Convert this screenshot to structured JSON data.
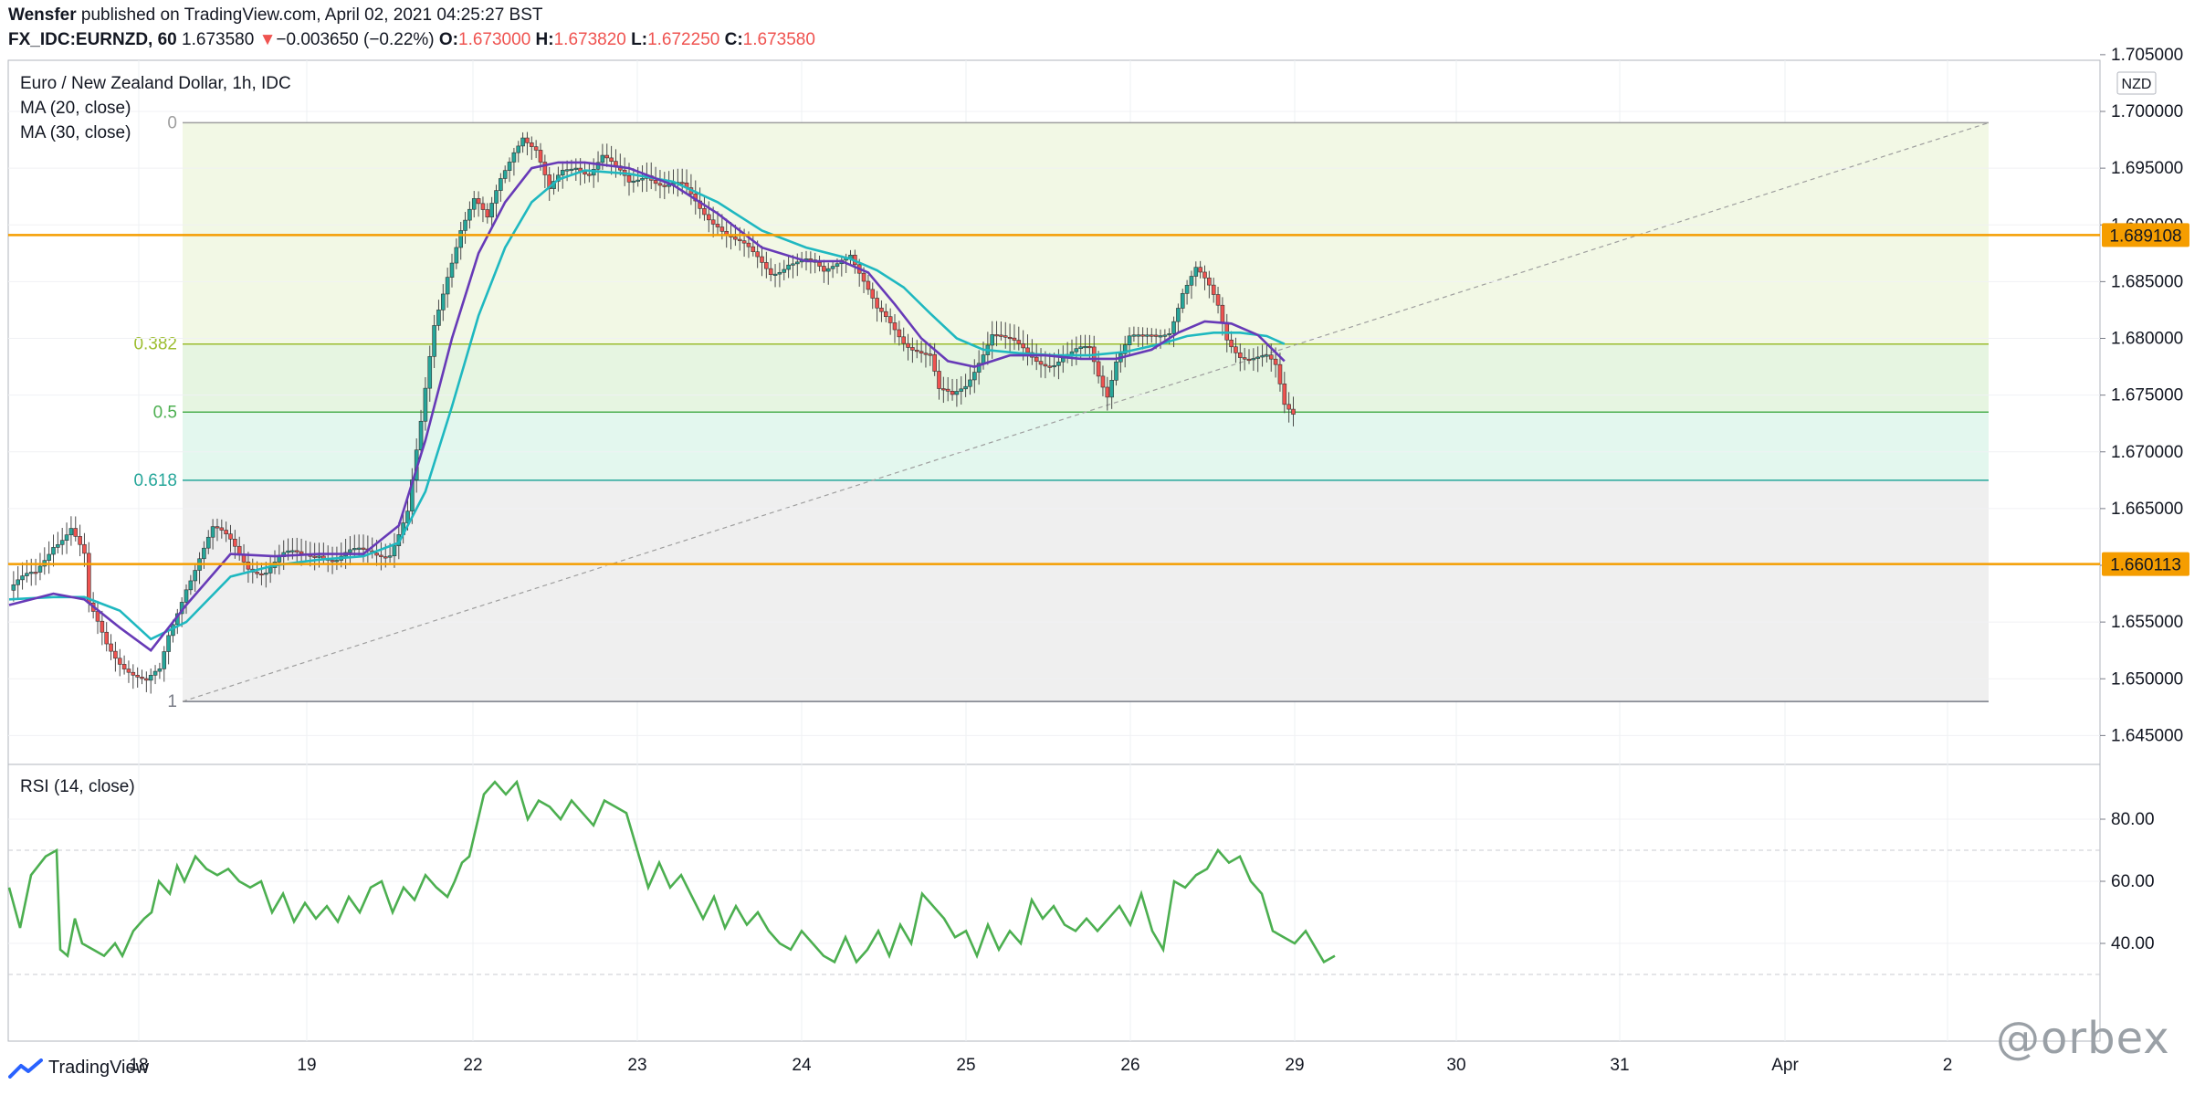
{
  "header": {
    "author": "Wensfer",
    "published_text": "published on TradingView.com, April 02, 2021 04:25:27 BST",
    "symbol": "FX_IDC:EURNZD, 60",
    "last": "1.673580",
    "change_arrow": "▼",
    "change": "−0.003650 (−0.22%)",
    "o_label": "O:",
    "o_value": "1.673000",
    "h_label": "H:",
    "h_value": "1.673820",
    "l_label": "L:",
    "l_value": "1.672250",
    "c_label": "C:",
    "c_value": "1.673580"
  },
  "legend": {
    "title": "Euro / New Zealand Dollar, 1h, IDC",
    "ma20": "MA (20, close)",
    "ma30": "MA (30, close)",
    "rsi": "RSI (14, close)"
  },
  "currency_badge": "NZD",
  "footer": {
    "brand": "TradingView",
    "watermark": "@orbex"
  },
  "colors": {
    "up": "#26a69a",
    "down": "#ef5350",
    "ma20": "#673ab7",
    "ma30": "#1fb8c0",
    "rsi": "#4caf50",
    "hline": "#f59d00",
    "fib_label_382": "#9cbd2e",
    "fib_label_5": "#4caf50",
    "fib_label_618": "#26a69a"
  },
  "chart_data": {
    "type": "candlestick",
    "price_axis": {
      "ticks": [
        "1.705000",
        "1.700000",
        "1.695000",
        "1.690000",
        "1.685000",
        "1.680000",
        "1.675000",
        "1.670000",
        "1.665000",
        "1.660000",
        "1.655000",
        "1.650000",
        "1.645000"
      ],
      "range": [
        1.6425,
        1.7065
      ]
    },
    "time_axis": {
      "labels": [
        "18",
        "19",
        "22",
        "23",
        "24",
        "25",
        "26",
        "29",
        "30",
        "31",
        "Apr",
        "2"
      ]
    },
    "price_path": [
      [
        0,
        1.6578
      ],
      [
        6,
        1.659
      ],
      [
        10,
        1.6622
      ],
      [
        14,
        1.6635
      ],
      [
        17,
        1.6605
      ],
      [
        18,
        1.656
      ],
      [
        22,
        1.653
      ],
      [
        27,
        1.6512
      ],
      [
        31,
        1.6495
      ],
      [
        34,
        1.6502
      ],
      [
        36,
        1.6535
      ],
      [
        40,
        1.6585
      ],
      [
        43,
        1.661
      ],
      [
        46,
        1.663
      ],
      [
        50,
        1.6618
      ],
      [
        54,
        1.6602
      ],
      [
        58,
        1.6597
      ],
      [
        62,
        1.6605
      ],
      [
        66,
        1.6608
      ],
      [
        70,
        1.6615
      ],
      [
        74,
        1.6605
      ],
      [
        78,
        1.6608
      ],
      [
        82,
        1.6612
      ],
      [
        86,
        1.6615
      ],
      [
        90,
        1.6645
      ],
      [
        93,
        1.672
      ],
      [
        96,
        1.681
      ],
      [
        99,
        1.686
      ],
      [
        102,
        1.69
      ],
      [
        105,
        1.692
      ],
      [
        108,
        1.69
      ],
      [
        111,
        1.694
      ],
      [
        114,
        1.697
      ],
      [
        116,
        1.6983
      ],
      [
        119,
        1.6965
      ],
      [
        122,
        1.6925
      ],
      [
        125,
        1.6945
      ],
      [
        128,
        1.6955
      ],
      [
        131,
        1.695
      ],
      [
        134,
        1.696
      ],
      [
        137,
        1.6945
      ],
      [
        140,
        1.6935
      ],
      [
        144,
        1.695
      ],
      [
        148,
        1.6935
      ],
      [
        152,
        1.693
      ],
      [
        156,
        1.6915
      ],
      [
        160,
        1.6905
      ],
      [
        164,
        1.6885
      ],
      [
        168,
        1.687
      ],
      [
        172,
        1.686
      ],
      [
        176,
        1.687
      ],
      [
        180,
        1.6865
      ],
      [
        184,
        1.6855
      ],
      [
        188,
        1.6875
      ],
      [
        190,
        1.688
      ],
      [
        193,
        1.685
      ],
      [
        196,
        1.682
      ],
      [
        199,
        1.681
      ],
      [
        202,
        1.68
      ],
      [
        205,
        1.6795
      ],
      [
        208,
        1.6785
      ],
      [
        210,
        1.675
      ],
      [
        213,
        1.6745
      ],
      [
        216,
        1.676
      ],
      [
        219,
        1.6785
      ],
      [
        222,
        1.6805
      ],
      [
        225,
        1.6795
      ],
      [
        228,
        1.679
      ],
      [
        232,
        1.6785
      ],
      [
        236,
        1.678
      ],
      [
        240,
        1.6782
      ],
      [
        244,
        1.679
      ],
      [
        246,
        1.677
      ],
      [
        248,
        1.6755
      ],
      [
        250,
        1.6785
      ],
      [
        253,
        1.68
      ],
      [
        256,
        1.6795
      ],
      [
        259,
        1.68
      ],
      [
        262,
        1.681
      ],
      [
        265,
        1.6845
      ],
      [
        268,
        1.686
      ],
      [
        271,
        1.684
      ],
      [
        273,
        1.6825
      ],
      [
        275,
        1.68
      ],
      [
        278,
        1.679
      ],
      [
        281,
        1.6785
      ],
      [
        284,
        1.678
      ],
      [
        286,
        1.677
      ],
      [
        288,
        1.6738
      ],
      [
        290,
        1.6735
      ]
    ],
    "ma20_path": [
      [
        0,
        1.6565
      ],
      [
        10,
        1.6575
      ],
      [
        17,
        1.657
      ],
      [
        25,
        1.6545
      ],
      [
        32,
        1.6525
      ],
      [
        40,
        1.6565
      ],
      [
        50,
        1.661
      ],
      [
        60,
        1.6608
      ],
      [
        70,
        1.661
      ],
      [
        80,
        1.661
      ],
      [
        88,
        1.6635
      ],
      [
        94,
        1.671
      ],
      [
        100,
        1.68
      ],
      [
        106,
        1.6875
      ],
      [
        112,
        1.692
      ],
      [
        118,
        1.695
      ],
      [
        124,
        1.6955
      ],
      [
        130,
        1.6955
      ],
      [
        140,
        1.695
      ],
      [
        150,
        1.6935
      ],
      [
        160,
        1.691
      ],
      [
        170,
        1.688
      ],
      [
        180,
        1.6868
      ],
      [
        188,
        1.6868
      ],
      [
        194,
        1.6858
      ],
      [
        200,
        1.683
      ],
      [
        206,
        1.68
      ],
      [
        212,
        1.678
      ],
      [
        218,
        1.6775
      ],
      [
        226,
        1.6785
      ],
      [
        234,
        1.6785
      ],
      [
        242,
        1.6782
      ],
      [
        250,
        1.6782
      ],
      [
        258,
        1.679
      ],
      [
        264,
        1.6805
      ],
      [
        270,
        1.6815
      ],
      [
        276,
        1.6813
      ],
      [
        282,
        1.6803
      ],
      [
        288,
        1.678
      ]
    ],
    "ma30_path": [
      [
        0,
        1.657
      ],
      [
        10,
        1.6572
      ],
      [
        17,
        1.6572
      ],
      [
        25,
        1.656
      ],
      [
        32,
        1.6535
      ],
      [
        40,
        1.655
      ],
      [
        50,
        1.659
      ],
      [
        60,
        1.66
      ],
      [
        70,
        1.6605
      ],
      [
        80,
        1.6608
      ],
      [
        88,
        1.662
      ],
      [
        94,
        1.6665
      ],
      [
        100,
        1.674
      ],
      [
        106,
        1.682
      ],
      [
        112,
        1.688
      ],
      [
        118,
        1.692
      ],
      [
        124,
        1.694
      ],
      [
        130,
        1.6948
      ],
      [
        140,
        1.6945
      ],
      [
        150,
        1.6938
      ],
      [
        160,
        1.692
      ],
      [
        170,
        1.6895
      ],
      [
        180,
        1.688
      ],
      [
        190,
        1.687
      ],
      [
        196,
        1.686
      ],
      [
        202,
        1.6845
      ],
      [
        208,
        1.6822
      ],
      [
        214,
        1.68
      ],
      [
        220,
        1.679
      ],
      [
        228,
        1.6787
      ],
      [
        236,
        1.6785
      ],
      [
        244,
        1.6785
      ],
      [
        252,
        1.6788
      ],
      [
        260,
        1.6795
      ],
      [
        266,
        1.6802
      ],
      [
        272,
        1.6805
      ],
      [
        278,
        1.6805
      ],
      [
        284,
        1.6802
      ],
      [
        288,
        1.6795
      ]
    ],
    "fibonacci": {
      "levels": [
        {
          "label": "0",
          "price": 1.699
        },
        {
          "label": "0.382",
          "price": 1.6795
        },
        {
          "label": "0.5",
          "price": 1.6735
        },
        {
          "label": "0.618",
          "price": 1.6675
        },
        {
          "label": "1",
          "price": 1.648
        }
      ]
    },
    "horizontal_lines": [
      {
        "price": 1.689108,
        "label": "1.689108"
      },
      {
        "price": 1.660113,
        "label": "1.660113"
      }
    ],
    "rsi": {
      "ticks": [
        "80.00",
        "60.00",
        "40.00"
      ],
      "band": [
        30,
        70
      ],
      "values": [
        [
          0,
          58
        ],
        [
          3,
          45
        ],
        [
          6,
          62
        ],
        [
          10,
          68
        ],
        [
          13,
          70
        ],
        [
          14,
          38
        ],
        [
          16,
          36
        ],
        [
          18,
          48
        ],
        [
          20,
          40
        ],
        [
          23,
          38
        ],
        [
          26,
          36
        ],
        [
          29,
          40
        ],
        [
          31,
          36
        ],
        [
          34,
          44
        ],
        [
          37,
          48
        ],
        [
          39,
          50
        ],
        [
          41,
          60
        ],
        [
          44,
          56
        ],
        [
          46,
          65
        ],
        [
          48,
          60
        ],
        [
          51,
          68
        ],
        [
          54,
          64
        ],
        [
          57,
          62
        ],
        [
          60,
          64
        ],
        [
          63,
          60
        ],
        [
          66,
          58
        ],
        [
          69,
          60
        ],
        [
          72,
          50
        ],
        [
          75,
          56
        ],
        [
          78,
          47
        ],
        [
          81,
          53
        ],
        [
          84,
          48
        ],
        [
          87,
          52
        ],
        [
          90,
          47
        ],
        [
          93,
          55
        ],
        [
          96,
          50
        ],
        [
          99,
          58
        ],
        [
          102,
          60
        ],
        [
          105,
          50
        ],
        [
          108,
          58
        ],
        [
          111,
          54
        ],
        [
          114,
          62
        ],
        [
          117,
          58
        ],
        [
          120,
          55
        ],
        [
          122,
          60
        ],
        [
          124,
          66
        ],
        [
          126,
          68
        ],
        [
          128,
          78
        ],
        [
          130,
          88
        ],
        [
          133,
          92
        ],
        [
          136,
          88
        ],
        [
          139,
          92
        ],
        [
          142,
          80
        ],
        [
          145,
          86
        ],
        [
          148,
          84
        ],
        [
          151,
          80
        ],
        [
          154,
          86
        ],
        [
          157,
          82
        ],
        [
          160,
          78
        ],
        [
          163,
          86
        ],
        [
          166,
          84
        ],
        [
          169,
          82
        ],
        [
          172,
          70
        ],
        [
          175,
          58
        ],
        [
          178,
          66
        ],
        [
          181,
          58
        ],
        [
          184,
          62
        ],
        [
          187,
          55
        ],
        [
          190,
          48
        ],
        [
          193,
          55
        ],
        [
          196,
          45
        ],
        [
          199,
          52
        ],
        [
          202,
          46
        ],
        [
          205,
          50
        ],
        [
          208,
          44
        ],
        [
          211,
          40
        ],
        [
          214,
          38
        ],
        [
          217,
          44
        ],
        [
          220,
          40
        ],
        [
          223,
          36
        ],
        [
          226,
          34
        ],
        [
          229,
          42
        ],
        [
          232,
          34
        ],
        [
          235,
          38
        ],
        [
          238,
          44
        ],
        [
          241,
          36
        ],
        [
          244,
          46
        ],
        [
          247,
          40
        ],
        [
          250,
          56
        ],
        [
          253,
          52
        ],
        [
          256,
          48
        ],
        [
          259,
          42
        ],
        [
          262,
          44
        ],
        [
          265,
          36
        ],
        [
          268,
          46
        ],
        [
          271,
          38
        ],
        [
          274,
          44
        ],
        [
          277,
          40
        ],
        [
          280,
          54
        ],
        [
          283,
          48
        ],
        [
          286,
          52
        ],
        [
          289,
          46
        ],
        [
          292,
          44
        ],
        [
          295,
          48
        ],
        [
          298,
          44
        ],
        [
          301,
          48
        ],
        [
          304,
          52
        ],
        [
          307,
          46
        ],
        [
          310,
          56
        ],
        [
          313,
          44
        ],
        [
          316,
          38
        ],
        [
          319,
          60
        ],
        [
          322,
          58
        ],
        [
          325,
          62
        ],
        [
          328,
          64
        ],
        [
          331,
          70
        ],
        [
          334,
          66
        ],
        [
          337,
          68
        ],
        [
          340,
          60
        ],
        [
          343,
          56
        ],
        [
          346,
          44
        ],
        [
          349,
          42
        ],
        [
          352,
          40
        ],
        [
          355,
          44
        ],
        [
          358,
          38
        ],
        [
          360,
          34
        ],
        [
          363,
          36
        ]
      ]
    }
  }
}
